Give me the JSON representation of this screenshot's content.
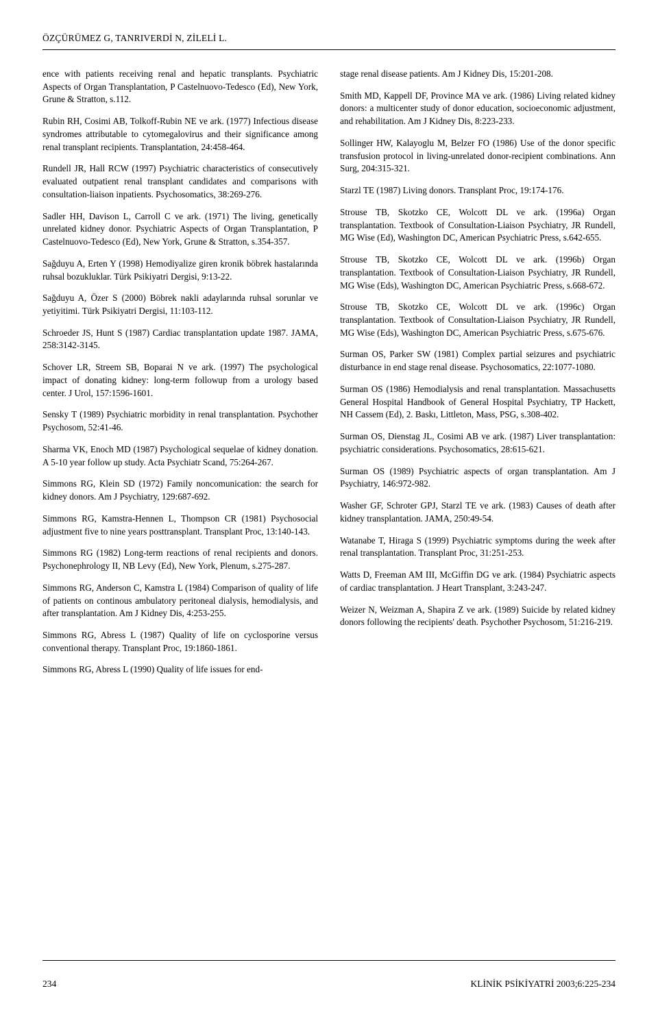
{
  "header": "ÖZÇÜRÜMEZ G, TANRIVERDİ N, ZİLELİ L.",
  "left": [
    "ence with patients receiving renal and hepatic transplants. Psychiatric Aspects of Organ Transplantation, P Castelnuovo-Tedesco (Ed), New York, Grune & Stratton, s.112.",
    "Rubin RH, Cosimi AB, Tolkoff-Rubin NE ve ark. (1977) Infectious disease syndromes attributable to cytomegalovirus and their significance among renal transplant recipients. Transplantation, 24:458-464.",
    "Rundell JR, Hall RCW (1997) Psychiatric characteristics of consecutively evaluated outpatient renal transplant candidates and comparisons with consultation-liaison inpatients. Psychosomatics, 38:269-276.",
    "Sadler HH, Davison L, Carroll C ve ark. (1971) The living, genetically unrelated kidney donor. Psychiatric Aspects of Organ Transplantation, P Castelnuovo-Tedesco (Ed), New York, Grune & Stratton, s.354-357.",
    "Sağduyu A, Erten Y (1998) Hemodiyalize giren kronik böbrek hastalarında ruhsal bozukluklar. Türk Psikiyatri Dergisi, 9:13-22.",
    "Sağduyu A, Özer S (2000) Böbrek nakli adaylarında ruhsal sorunlar ve yetiyitimi. Türk Psikiyatri Dergisi, 11:103-112.",
    "Schroeder JS, Hunt S (1987) Cardiac transplantation update 1987. JAMA, 258:3142-3145.",
    "Schover LR, Streem SB, Boparai N ve ark. (1997) The psychological impact of donating kidney: long-term followup from a urology based center. J Urol, 157:1596-1601.",
    "Sensky T (1989) Psychiatric morbidity in renal transplantation. Psychother Psychosom, 52:41-46.",
    "Sharma VK, Enoch MD (1987) Psychological sequelae of kidney donation. A 5-10 year follow up study. Acta Psychiatr Scand, 75:264-267.",
    "Simmons RG, Klein SD (1972) Family noncomunication: the search for kidney donors. Am J Psychiatry, 129:687-692.",
    "Simmons RG, Kamstra-Hennen L, Thompson CR (1981) Psychosocial adjustment five to nine years posttransplant. Transplant Proc, 13:140-143.",
    "Simmons RG (1982) Long-term reactions of renal recipients and donors. Psychonephrology II, NB Levy (Ed), New York, Plenum, s.275-287.",
    "Simmons RG, Anderson C, Kamstra L (1984) Comparison of quality of life of patients on continous ambulatory peritoneal dialysis, hemodialysis, and after transplantation. Am J Kidney Dis, 4:253-255.",
    "Simmons RG, Abress L (1987) Quality of life on cyclosporine versus conventional therapy. Transplant Proc, 19:1860-1861.",
    "Simmons RG, Abress L (1990) Quality of life issues for end-"
  ],
  "right": [
    "stage renal disease patients. Am J Kidney Dis, 15:201-208.",
    "Smith MD, Kappell DF, Province MA ve ark. (1986) Living related kidney donors: a multicenter study of donor education, socioeconomic adjustment, and rehabilitation. Am J Kidney Dis, 8:223-233.",
    "Sollinger HW, Kalayoglu M, Belzer FO (1986) Use of the donor specific transfusion protocol in living-unrelated donor-recipient combinations. Ann Surg, 204:315-321.",
    "Starzl TE (1987) Living donors. Transplant Proc, 19:174-176.",
    "Strouse TB, Skotzko CE, Wolcott DL ve ark. (1996a) Organ transplantation. Textbook of Consultation-Liaison Psychiatry, JR Rundell, MG Wise (Ed), Washington DC, American Psychiatric Press, s.642-655.",
    "Strouse TB, Skotzko CE, Wolcott DL ve ark. (1996b) Organ transplantation. Textbook of Consultation-Liaison Psychiatry, JR Rundell, MG Wise (Eds), Washington DC, American Psychiatric Press, s.668-672.",
    "Strouse TB, Skotzko CE, Wolcott DL ve ark. (1996c) Organ transplantation. Textbook of Consultation-Liaison Psychiatry, JR Rundell, MG Wise (Eds), Washington DC, American Psychiatric Press, s.675-676.",
    "Surman OS, Parker SW (1981) Complex partial seizures and psychiatric disturbance in end stage renal disease. Psychosomatics, 22:1077-1080.",
    "Surman OS (1986) Hemodialysis and renal transplantation. Massachusetts General Hospital Handbook of General Hospital Psychiatry, TP Hackett, NH Cassem (Ed), 2. Baskı, Littleton, Mass, PSG, s.308-402.",
    "Surman OS, Dienstag JL, Cosimi AB ve ark. (1987) Liver transplantation: psychiatric considerations. Psychosomatics, 28:615-621.",
    "Surman OS (1989) Psychiatric aspects of organ transplantation. Am J Psychiatry, 146:972-982.",
    "Washer GF, Schroter GPJ, Starzl TE ve ark. (1983) Causes of death after kidney transplantation. JAMA, 250:49-54.",
    "Watanabe T, Hiraga S (1999) Psychiatric symptoms during the week after renal transplantation. Transplant Proc, 31:251-253.",
    "Watts D, Freeman AM III, McGiffin DG ve ark. (1984) Psychiatric aspects of cardiac transplantation. J Heart Transplant, 3:243-247.",
    "Weizer N, Weizman A, Shapira Z ve ark. (1989) Suicide by related kidney donors following the recipients' death. Psychother Psychosom, 51:216-219."
  ],
  "pageNumber": "234",
  "journalRef": "KLİNİK PSİKİYATRİ 2003;6:225-234"
}
